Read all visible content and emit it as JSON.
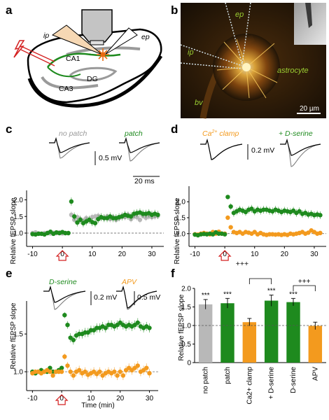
{
  "panels": {
    "a": {
      "letter": "a",
      "labels": {
        "ip": "ip",
        "ep": "ep",
        "ca1": "CA1",
        "ca3": "CA3",
        "dg": "DG"
      }
    },
    "b": {
      "letter": "b",
      "labels": {
        "ep": "ep",
        "ip": "ip",
        "astrocyte": "astrocyte",
        "bv": "bv",
        "scale": "20 µm"
      }
    },
    "c": {
      "letter": "c",
      "trace_labels": {
        "left": "no patch",
        "right": "patch"
      },
      "scalebar": {
        "amp": "0.5 mV",
        "time": "20 ms"
      },
      "ylabel": "Relative fEPSP slope"
    },
    "d": {
      "letter": "d",
      "trace_labels": {
        "left_main": "Ca",
        "left_sup": "2+",
        "left_rest": " clamp",
        "right": "+ D-serine"
      },
      "scalebar": {
        "amp": "0.2 mV"
      },
      "ylabel": "Relative fEPSP slope"
    },
    "e": {
      "letter": "e",
      "trace_labels": {
        "left": "D-serine",
        "right": "APV"
      },
      "scalebar": {
        "amp1": "0.2 mV",
        "amp2": "0.5 mV"
      },
      "ylabel": "Relative fEPSP slope",
      "xlabel": "Time (min)"
    },
    "f": {
      "letter": "f",
      "ylabel": "Relative fEPSP slope",
      "sig_top": "+++"
    }
  },
  "colors": {
    "green": "#1e8a1e",
    "grey": "#b8b8b8",
    "orange": "#f39a1e",
    "lightgreen": "#8fcc6a",
    "red": "#d42020"
  },
  "chart_data": [
    {
      "panel": "c",
      "type": "scatter",
      "xlim": [
        -12,
        34
      ],
      "ylim": [
        0.6,
        2.2
      ],
      "xticks": [
        -10,
        0,
        10,
        20,
        30
      ],
      "yticks": [
        1.0,
        1.5,
        2.0
      ],
      "yticklabels": [
        "1.0",
        "1.5",
        "2.0"
      ],
      "baseline": 1.0,
      "series": [
        {
          "name": "no patch",
          "color": "#b8b8b8",
          "x": [
            -10,
            -9,
            -8,
            -7,
            -6,
            -5,
            -4,
            -3,
            -2,
            -1,
            0,
            1,
            2,
            3,
            4,
            5,
            6,
            7,
            8,
            9,
            10,
            11,
            12,
            13,
            14,
            15,
            16,
            17,
            18,
            19,
            20,
            21,
            22,
            23,
            24,
            25,
            26,
            27,
            28,
            29,
            30,
            31,
            32
          ],
          "y": [
            1.0,
            1.02,
            0.99,
            0.98,
            1.0,
            1.01,
            0.99,
            1.01,
            1.0,
            1.02,
            0.99,
            1.0,
            1.0,
            1.55,
            1.4,
            1.48,
            1.42,
            1.38,
            1.45,
            1.4,
            1.48,
            1.5,
            1.52,
            1.46,
            1.45,
            1.5,
            1.42,
            1.48,
            1.4,
            1.45,
            1.52,
            1.48,
            1.55,
            1.42,
            1.5,
            1.48,
            1.4,
            1.52,
            1.46,
            1.5,
            1.48,
            1.5,
            1.52
          ],
          "err": [
            0.03,
            0.03,
            0.03,
            0.03,
            0.03,
            0.03,
            0.03,
            0.03,
            0.03,
            0.03,
            0.03,
            0.03,
            0.03,
            0.1,
            0.1,
            0.1,
            0.1,
            0.1,
            0.1,
            0.1,
            0.1,
            0.1,
            0.1,
            0.1,
            0.1,
            0.1,
            0.1,
            0.1,
            0.1,
            0.1,
            0.1,
            0.1,
            0.1,
            0.1,
            0.1,
            0.1,
            0.1,
            0.1,
            0.1,
            0.1,
            0.1,
            0.1,
            0.1
          ]
        },
        {
          "name": "patch",
          "color": "#1e8a1e",
          "x": [
            -10,
            -9,
            -8,
            -7,
            -6,
            -5,
            -4,
            -3,
            -2,
            -1,
            0,
            1,
            2,
            3,
            4,
            5,
            6,
            7,
            8,
            9,
            10,
            11,
            12,
            13,
            14,
            15,
            16,
            17,
            18,
            19,
            20,
            21,
            22,
            23,
            24,
            25,
            26,
            27,
            28,
            29,
            30,
            31,
            32
          ],
          "y": [
            0.97,
            0.96,
            0.98,
            0.98,
            0.96,
            1.0,
            1.04,
            0.98,
            1.02,
            1.0,
            1.03,
            1.0,
            1.0,
            1.95,
            1.5,
            1.32,
            1.4,
            1.3,
            1.35,
            1.4,
            1.33,
            1.3,
            1.42,
            1.48,
            1.45,
            1.45,
            1.5,
            1.45,
            1.45,
            1.48,
            1.5,
            1.55,
            1.52,
            1.5,
            1.58,
            1.6,
            1.62,
            1.58,
            1.58,
            1.6,
            1.55,
            1.58,
            1.55
          ],
          "err": [
            0.03,
            0.03,
            0.03,
            0.03,
            0.03,
            0.03,
            0.03,
            0.03,
            0.03,
            0.03,
            0.03,
            0.03,
            0.03,
            0.12,
            0.12,
            0.12,
            0.12,
            0.12,
            0.12,
            0.12,
            0.12,
            0.12,
            0.12,
            0.12,
            0.12,
            0.12,
            0.12,
            0.12,
            0.12,
            0.12,
            0.12,
            0.12,
            0.12,
            0.12,
            0.12,
            0.12,
            0.12,
            0.12,
            0.12,
            0.12,
            0.12,
            0.12,
            0.12
          ]
        }
      ]
    },
    {
      "panel": "d",
      "type": "scatter",
      "xlim": [
        -12,
        34
      ],
      "ylim": [
        0.6,
        2.4
      ],
      "xticks": [
        -10,
        0,
        10,
        20,
        30
      ],
      "yticks": [
        1.0,
        1.5,
        2.0
      ],
      "yticklabels": [
        "1.0",
        "1.5",
        "2.0"
      ],
      "baseline": 1.0,
      "series": [
        {
          "name": "Ca2+ clamp",
          "color": "#f39a1e",
          "x": [
            -10,
            -9,
            -8,
            -7,
            -6,
            -5,
            -4,
            -3,
            -2,
            -1,
            0,
            1,
            2,
            3,
            4,
            5,
            6,
            7,
            8,
            9,
            10,
            11,
            12,
            13,
            14,
            15,
            16,
            17,
            18,
            19,
            20,
            21,
            22,
            23,
            24,
            25,
            26,
            27,
            28,
            29,
            30,
            31,
            32
          ],
          "y": [
            0.98,
            0.97,
            1.0,
            1.02,
            1.0,
            0.98,
            1.05,
            1.0,
            1.06,
            1.0,
            1.0,
            1.5,
            1.2,
            1.05,
            1.02,
            1.05,
            1.0,
            1.05,
            1.03,
            1.0,
            1.05,
            0.98,
            1.02,
            0.98,
            0.96,
            0.98,
            0.98,
            0.97,
            0.98,
            0.96,
            0.98,
            0.96,
            1.0,
            0.98,
            1.0,
            1.02,
            1.05,
            1.0,
            1.03,
            1.1,
            1.05,
            1.0,
            1.02
          ],
          "err": [
            0.03,
            0.03,
            0.03,
            0.03,
            0.03,
            0.03,
            0.03,
            0.03,
            0.03,
            0.03,
            0.03,
            0.05,
            0.05,
            0.06,
            0.06,
            0.06,
            0.06,
            0.06,
            0.06,
            0.06,
            0.06,
            0.06,
            0.06,
            0.06,
            0.06,
            0.06,
            0.06,
            0.06,
            0.06,
            0.06,
            0.06,
            0.06,
            0.06,
            0.06,
            0.06,
            0.06,
            0.06,
            0.06,
            0.06,
            0.06,
            0.06,
            0.06,
            0.06
          ]
        },
        {
          "name": "+ D-serine",
          "color": "#1e8a1e",
          "x": [
            -10,
            -9,
            -8,
            -7,
            -6,
            -5,
            -4,
            -3,
            -2,
            -1,
            0,
            1,
            2,
            3,
            4,
            5,
            6,
            7,
            8,
            9,
            10,
            11,
            12,
            13,
            14,
            15,
            16,
            17,
            18,
            19,
            20,
            21,
            22,
            23,
            24,
            25,
            26,
            27,
            28,
            29,
            30,
            31,
            32
          ],
          "y": [
            0.97,
            0.95,
            0.98,
            0.99,
            0.98,
            1.0,
            0.98,
            1.04,
            1.0,
            1.0,
            0.98,
            2.15,
            1.85,
            1.65,
            1.7,
            1.75,
            1.72,
            1.68,
            1.75,
            1.78,
            1.7,
            1.75,
            1.72,
            1.75,
            1.75,
            1.72,
            1.7,
            1.75,
            1.72,
            1.68,
            1.72,
            1.7,
            1.68,
            1.72,
            1.65,
            1.7,
            1.62,
            1.65,
            1.6,
            1.62,
            1.58,
            1.6,
            1.58
          ],
          "err": [
            0.03,
            0.03,
            0.03,
            0.03,
            0.03,
            0.03,
            0.03,
            0.03,
            0.03,
            0.03,
            0.03,
            0.05,
            0.1,
            0.12,
            0.12,
            0.12,
            0.12,
            0.12,
            0.12,
            0.12,
            0.12,
            0.12,
            0.12,
            0.12,
            0.12,
            0.12,
            0.12,
            0.12,
            0.12,
            0.12,
            0.12,
            0.12,
            0.12,
            0.12,
            0.12,
            0.12,
            0.12,
            0.12,
            0.12,
            0.12,
            0.12,
            0.12,
            0.12
          ]
        }
      ]
    },
    {
      "panel": "e",
      "type": "scatter",
      "xlim": [
        -12,
        33
      ],
      "ylim": [
        0.75,
        1.9
      ],
      "xticks": [
        -10,
        0,
        10,
        20,
        30
      ],
      "yticks": [
        1.0,
        1.5
      ],
      "yticklabels": [
        "1.0",
        "1.5"
      ],
      "baseline": 1.0,
      "xlabel": "Time (min)",
      "series": [
        {
          "name": "D-serine",
          "color": "#1e8a1e",
          "x": [
            -10,
            -9,
            -8,
            -7,
            -6,
            -5,
            -4,
            -3,
            -2,
            -1,
            0,
            1,
            2,
            3,
            4,
            5,
            6,
            7,
            8,
            9,
            10,
            11,
            12,
            13,
            14,
            15,
            16,
            17,
            18,
            19,
            20,
            21,
            22,
            23,
            24,
            25,
            26,
            27,
            28,
            29,
            30
          ],
          "y": [
            1.0,
            0.98,
            1.0,
            1.02,
            1.0,
            1.0,
            1.05,
            1.0,
            1.0,
            1.02,
            1.05,
            1.75,
            1.62,
            1.45,
            1.42,
            1.48,
            1.5,
            1.5,
            1.52,
            1.52,
            1.55,
            1.55,
            1.58,
            1.58,
            1.6,
            1.58,
            1.62,
            1.62,
            1.6,
            1.62,
            1.65,
            1.62,
            1.6,
            1.62,
            1.6,
            1.62,
            1.65,
            1.6,
            1.58,
            1.6,
            1.58
          ],
          "err": [
            0.03,
            0.03,
            0.03,
            0.03,
            0.03,
            0.03,
            0.03,
            0.03,
            0.03,
            0.03,
            0.03,
            0.04,
            0.05,
            0.06,
            0.06,
            0.06,
            0.06,
            0.06,
            0.06,
            0.06,
            0.06,
            0.06,
            0.06,
            0.06,
            0.06,
            0.06,
            0.06,
            0.06,
            0.06,
            0.06,
            0.06,
            0.06,
            0.06,
            0.06,
            0.06,
            0.06,
            0.06,
            0.06,
            0.06,
            0.06,
            0.06
          ]
        },
        {
          "name": "APV",
          "color": "#f39a1e",
          "x": [
            -10,
            -9,
            -8,
            -7,
            -6,
            -5,
            -4,
            -3,
            -2,
            -1,
            0,
            1,
            2,
            3,
            4,
            5,
            6,
            7,
            8,
            9,
            10,
            11,
            12,
            13,
            14,
            15,
            16,
            17,
            18,
            19,
            20,
            21,
            22,
            23,
            24,
            25,
            26,
            27,
            28,
            29,
            30
          ],
          "y": [
            0.98,
            1.0,
            1.0,
            0.98,
            1.0,
            1.02,
            1.0,
            0.95,
            1.0,
            1.0,
            1.0,
            1.2,
            1.08,
            1.0,
            0.95,
            1.0,
            1.02,
            0.98,
            1.0,
            0.96,
            0.98,
            1.0,
            0.97,
            1.0,
            0.95,
            0.98,
            1.0,
            0.98,
            1.0,
            0.95,
            1.0,
            0.95,
            1.02,
            1.05,
            1.02,
            1.05,
            1.08,
            1.0,
            1.02,
            1.05,
            0.98
          ],
          "err": [
            0.03,
            0.03,
            0.03,
            0.03,
            0.03,
            0.03,
            0.03,
            0.03,
            0.03,
            0.03,
            0.03,
            0.04,
            0.05,
            0.06,
            0.06,
            0.06,
            0.06,
            0.06,
            0.06,
            0.06,
            0.06,
            0.06,
            0.06,
            0.06,
            0.06,
            0.06,
            0.06,
            0.06,
            0.06,
            0.06,
            0.06,
            0.06,
            0.06,
            0.06,
            0.06,
            0.06,
            0.06,
            0.06,
            0.06,
            0.06,
            0.06
          ]
        }
      ]
    },
    {
      "panel": "f",
      "type": "bar",
      "ylim": [
        0,
        2.0
      ],
      "yticks": [
        0,
        0.5,
        1.0,
        1.5,
        2.0
      ],
      "yticklabels": [
        "0",
        "0.5",
        "1.0",
        "1.5",
        "2.0"
      ],
      "baseline": 1.0,
      "ylabel": "Relative fEPSP slope",
      "categories": [
        "no patch",
        "patch",
        "Ca2+ clamp",
        "+ D-serine",
        "D-serine",
        "APV"
      ],
      "values": [
        1.57,
        1.6,
        1.09,
        1.67,
        1.63,
        0.99
      ],
      "errors": [
        0.13,
        0.13,
        0.1,
        0.15,
        0.1,
        0.1
      ],
      "colors": [
        "#b8b8b8",
        "#1e8a1e",
        "#f39a1e",
        "#1e8a1e",
        "#1e8a1e",
        "#f39a1e"
      ],
      "significance": [
        "***",
        "***",
        "",
        "***",
        "***",
        ""
      ],
      "brackets": [
        {
          "from": 2,
          "to": 3,
          "label": "+++"
        },
        {
          "from": 4,
          "to": 5,
          "label": "+++"
        }
      ]
    }
  ]
}
